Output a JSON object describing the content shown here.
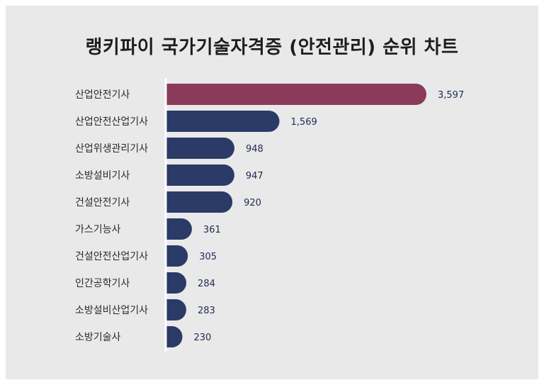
{
  "title": "랭키파이 국가기술자격증 (안전관리) 순위 차트",
  "colors": {
    "background": "#e9e9ea",
    "bar": "#2b3a67",
    "highlight": "#8b3a5a",
    "axis": "#ffffff"
  },
  "chart_data": {
    "type": "bar",
    "orientation": "horizontal",
    "title": "랭키파이 국가기술자격증 (안전관리) 순위 차트",
    "categories": [
      "산업안전기사",
      "산업안전산업기사",
      "산업위생관리기사",
      "소방설비기사",
      "건설안전기사",
      "가스기능사",
      "건설안전산업기사",
      "인간공학기사",
      "소방설비산업기사",
      "소방기술사"
    ],
    "values": [
      3597,
      1569,
      948,
      947,
      920,
      361,
      305,
      284,
      283,
      230
    ],
    "value_labels": [
      "3,597",
      "1,569",
      "948",
      "947",
      "920",
      "361",
      "305",
      "284",
      "283",
      "230"
    ],
    "highlight_index": 0,
    "xlim": [
      0,
      3597
    ],
    "grid": false,
    "legend": "none"
  }
}
